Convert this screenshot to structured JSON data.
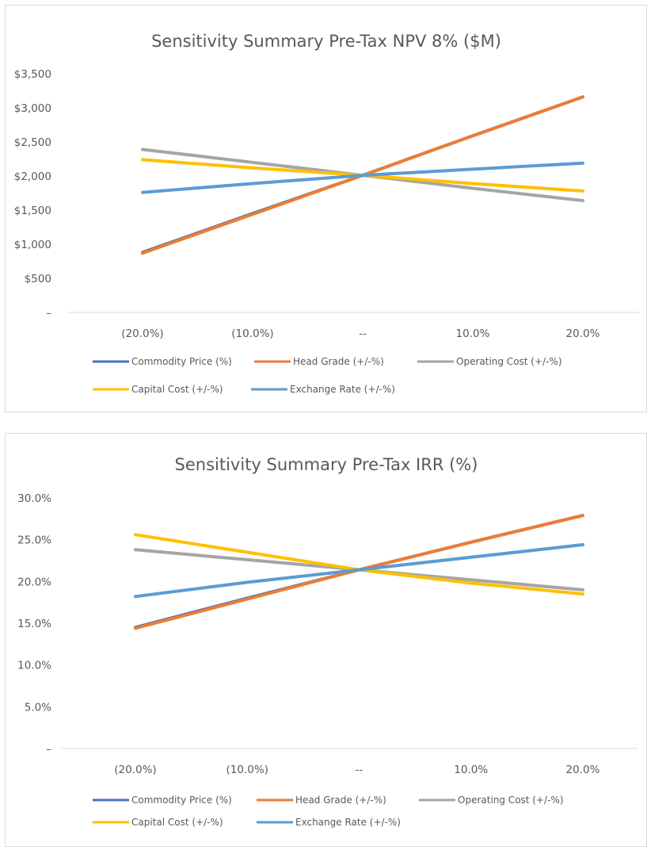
{
  "chart_data": [
    {
      "type": "line",
      "title": "Sensitivity Summary Pre-Tax NPV  8% ($M)",
      "xlabel": "",
      "ylabel": "",
      "categories": [
        "(20.0%)",
        "(10.0%)",
        "--",
        "10.0%",
        "20.0%"
      ],
      "y_ticks": [
        {
          "value": 0,
          "label": "–"
        },
        {
          "value": 500,
          "label": "$500"
        },
        {
          "value": 1000,
          "label": "$1,000"
        },
        {
          "value": 1500,
          "label": "$1,500"
        },
        {
          "value": 2000,
          "label": "$2,000"
        },
        {
          "value": 2500,
          "label": "$2,500"
        },
        {
          "value": 3000,
          "label": "$3,000"
        },
        {
          "value": 3500,
          "label": "$3,500"
        }
      ],
      "ylim": [
        0,
        3500
      ],
      "grid": false,
      "legend_position": "bottom",
      "series": [
        {
          "name": "Commodity Price (%)",
          "color": "#4472C4",
          "values": [
            880,
            1450,
            2010,
            2590,
            3160
          ]
        },
        {
          "name": "Head Grade (+/-%)",
          "color": "#ED7D31",
          "values": [
            870,
            1440,
            2010,
            2590,
            3160
          ]
        },
        {
          "name": "Operating Cost (+/-%)",
          "color": "#A5A5A5",
          "values": [
            2390,
            2200,
            2010,
            1820,
            1640
          ]
        },
        {
          "name": "Capital Cost (+/-%)",
          "color": "#FFC000",
          "values": [
            2240,
            2120,
            2010,
            1890,
            1780
          ]
        },
        {
          "name": "Exchange Rate (+/-%)",
          "color": "#5B9BD5",
          "values": [
            1760,
            1890,
            2010,
            2100,
            2190
          ]
        }
      ],
      "legend_rows": [
        [
          0,
          1,
          2
        ],
        [
          3,
          4
        ]
      ]
    },
    {
      "type": "line",
      "title": "Sensitivity Summary Pre-Tax IRR (%)",
      "xlabel": "",
      "ylabel": "",
      "categories": [
        "(20.0%)",
        "(10.0%)",
        "--",
        "10.0%",
        "20.0%"
      ],
      "y_ticks": [
        {
          "value": 0,
          "label": "–"
        },
        {
          "value": 5,
          "label": "5.0%"
        },
        {
          "value": 10,
          "label": "10.0%"
        },
        {
          "value": 15,
          "label": "15.0%"
        },
        {
          "value": 20,
          "label": "20.0%"
        },
        {
          "value": 25,
          "label": "25.0%"
        },
        {
          "value": 30,
          "label": "30.0%"
        }
      ],
      "ylim": [
        0,
        30
      ],
      "grid": false,
      "legend_position": "bottom",
      "series": [
        {
          "name": "Commodity Price (%)",
          "color": "#4472C4",
          "values": [
            14.5,
            18.0,
            21.4,
            24.7,
            27.9
          ]
        },
        {
          "name": "Head Grade (+/-%)",
          "color": "#ED7D31",
          "values": [
            14.4,
            17.9,
            21.4,
            24.7,
            27.9
          ]
        },
        {
          "name": "Operating Cost (+/-%)",
          "color": "#A5A5A5",
          "values": [
            23.8,
            22.6,
            21.4,
            20.2,
            19.0
          ]
        },
        {
          "name": "Capital Cost (+/-%)",
          "color": "#FFC000",
          "values": [
            25.6,
            23.5,
            21.4,
            19.8,
            18.5
          ]
        },
        {
          "name": "Exchange Rate (+/-%)",
          "color": "#5B9BD5",
          "values": [
            18.2,
            19.9,
            21.4,
            22.9,
            24.4
          ]
        }
      ],
      "legend_rows": [
        [
          0,
          1,
          2
        ],
        [
          3,
          4
        ]
      ]
    }
  ]
}
